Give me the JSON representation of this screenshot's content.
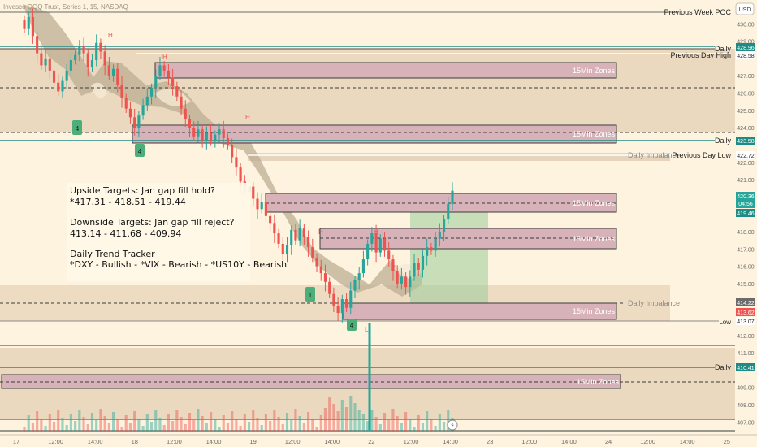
{
  "header": {
    "symbol_line": "Invesco QQQ Trust, Series 1, 15, NASDAQ",
    "currency_button": "USD"
  },
  "colors": {
    "background": "#fdf3de",
    "bull": "#26a69a",
    "bear": "#ef5350",
    "zone_fill": "#d7b3b9",
    "zone_border": "#3b3b3b",
    "daily_band": "#ead9bf",
    "cloud": "#b9a98f",
    "teal_line": "#1e8c86",
    "target_green": "#9ccc9a",
    "target_red": "#f39a9f"
  },
  "notes_box": {
    "line1": "Upside Targets: Jan gap fill hold?",
    "line2": "*417.31 - 418.51 - 419.44",
    "line3": "Downside Targets: Jan gap fill reject?",
    "line4": "413.14 - 411.68 - 409.94",
    "line5": "Daily Trend Tracker",
    "line6": "*DXY - Bullish - *VIX - Bearish - *US10Y - Bearish"
  },
  "zone_labels": {
    "z1": "15Min Zones",
    "z2": "15Min Zones",
    "z3": "15Min Zones",
    "z4": "15Min Zones",
    "z5": "15Min Zones",
    "z6": "15Min Zones"
  },
  "level_labels": {
    "prev_week_poc": "Previous Week POC",
    "daily_top": "Daily",
    "prev_day_high": "Previous Day High",
    "daily_mid": "Daily",
    "daily_imbalance_1": "Daily Imbalance",
    "prev_day_low": "Previous Day Low",
    "daily_imbalance_2": "Daily Imbalance",
    "low": "Low",
    "daily_low": "Daily"
  },
  "price_badges": {
    "p428_96": "428.96",
    "p428_58": "428.58",
    "p423_58": "423.58",
    "p422_72": "422.72",
    "p420_36": "420.36",
    "countdown": "04:56",
    "p419_46": "419.46",
    "p414_22": "414.22",
    "p413_62": "413.62",
    "p413_07": "413.07",
    "p410_41": "410.41"
  },
  "markers": {
    "h1": "H",
    "h2": "H",
    "h3": "H",
    "h4": "H",
    "h5": "H",
    "l1": "L",
    "b1": "4",
    "b2": "4",
    "b3": "1",
    "b4": "4"
  },
  "chart_data": {
    "type": "candlestick",
    "symbol": "Invesco QQQ Trust, Series 1, 15, NASDAQ",
    "currency": "USD",
    "y_ticks": [
      "430.00",
      "429.00",
      "427.00",
      "426.00",
      "425.00",
      "424.00",
      "422.00",
      "421.00",
      "418.00",
      "417.00",
      "416.00",
      "415.00",
      "412.00",
      "411.00",
      "409.00",
      "408.00",
      "407.00"
    ],
    "x_ticks": [
      "17",
      "12:00",
      "14:00",
      "18",
      "12:00",
      "14:00",
      "19",
      "12:00",
      "14:00",
      "22",
      "12:00",
      "14:00",
      "23",
      "12:00",
      "14:00",
      "24",
      "12:00",
      "14:00",
      "25"
    ],
    "ylim": [
      406.5,
      431
    ],
    "levels": [
      {
        "label": "Previous Week POC",
        "price": 430.3
      },
      {
        "label": "Daily",
        "price": 428.96
      },
      {
        "label": "Previous Day High",
        "price": 428.58
      },
      {
        "label": "Daily",
        "price": 423.58
      },
      {
        "label": "Daily Imbalance",
        "price": 422.85
      },
      {
        "label": "Previous Day Low",
        "price": 422.72
      },
      {
        "label": "Daily Imbalance",
        "price": 414.22
      },
      {
        "label": "Low",
        "price": 413.07
      },
      {
        "label": "Daily",
        "price": 410.41
      }
    ],
    "zones_15min": [
      {
        "top": 427.7,
        "bottom": 426.9
      },
      {
        "top": 424.4,
        "bottom": 423.4
      },
      {
        "top": 420.4,
        "bottom": 419.4
      },
      {
        "top": 418.5,
        "bottom": 417.4
      },
      {
        "top": 414.2,
        "bottom": 413.3
      },
      {
        "top": 410.0,
        "bottom": 409.3
      }
    ],
    "close": [
      429.7,
      430.4,
      429.3,
      428.3,
      427.6,
      428.0,
      427.3,
      426.6,
      426.1,
      426.7,
      427.3,
      427.9,
      428.2,
      428.7,
      428.3,
      427.5,
      427.9,
      428.9,
      428.4,
      427.6,
      427.0,
      427.4,
      426.5,
      425.7,
      425.1,
      424.6,
      424.0,
      424.7,
      425.3,
      425.8,
      426.3,
      427.0,
      427.6,
      427.3,
      426.9,
      426.4,
      425.8,
      425.1,
      424.5,
      424.0,
      423.5,
      423.9,
      423.3,
      423.7,
      423.2,
      423.6,
      423.9,
      423.4,
      423.0,
      422.3,
      421.7,
      420.9,
      420.3,
      420.6,
      419.9,
      419.3,
      419.7,
      418.9,
      418.5,
      417.9,
      417.3,
      416.7,
      417.2,
      418.1,
      417.5,
      418.2,
      417.7,
      417.1,
      416.5,
      416.0,
      415.6,
      415.1,
      414.4,
      413.7,
      413.3,
      414.1,
      413.6,
      414.6,
      415.2,
      415.6,
      416.4,
      417.3,
      417.9,
      416.8,
      417.6,
      416.9,
      416.4,
      415.7,
      415.0,
      415.4,
      414.8,
      415.4,
      416.2,
      415.8,
      416.6,
      417.1,
      416.9,
      417.6,
      418.0,
      418.7,
      419.6,
      420.36
    ]
  }
}
